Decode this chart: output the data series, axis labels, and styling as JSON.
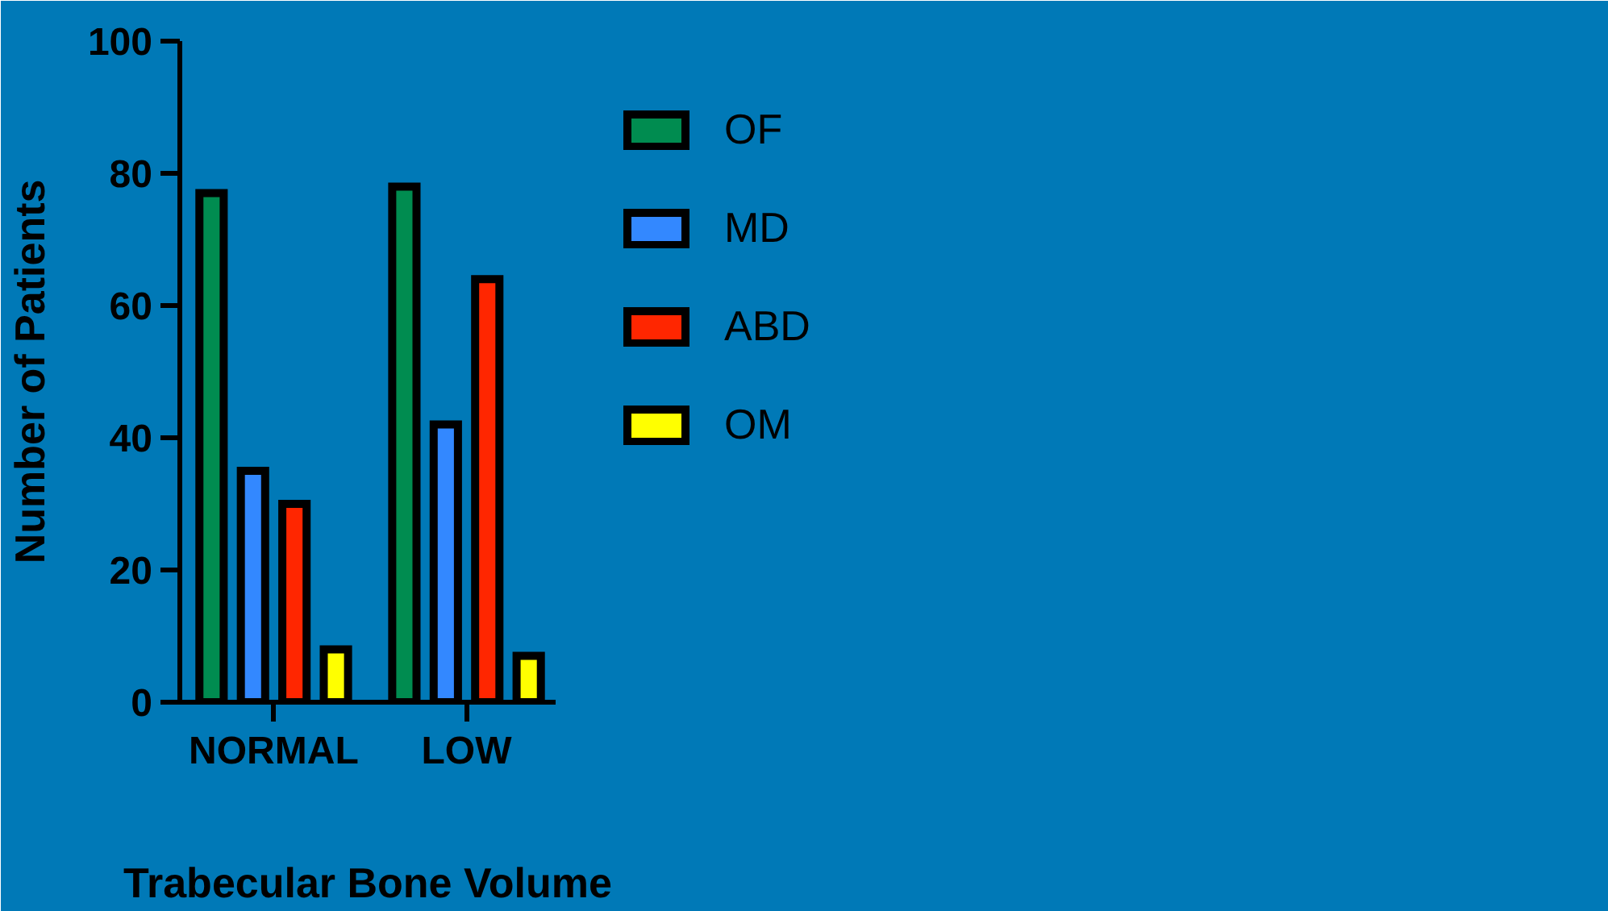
{
  "chart_data": {
    "type": "bar",
    "xlabel": "Trabecular Bone Volume",
    "ylabel": "Number of Patients",
    "categories": [
      "NORMAL",
      "LOW"
    ],
    "series": [
      {
        "name": "OF",
        "color": "#008c50",
        "values": [
          77,
          78
        ]
      },
      {
        "name": "MD",
        "color": "#3388ff",
        "values": [
          35,
          42
        ]
      },
      {
        "name": "ABD",
        "color": "#ff2600",
        "values": [
          30,
          64
        ]
      },
      {
        "name": "OM",
        "color": "#ffff00",
        "values": [
          8,
          7
        ]
      }
    ],
    "ylim": [
      0,
      100
    ],
    "yticks": [
      0,
      20,
      40,
      60,
      80,
      100
    ],
    "grid": false,
    "legend": "right"
  }
}
